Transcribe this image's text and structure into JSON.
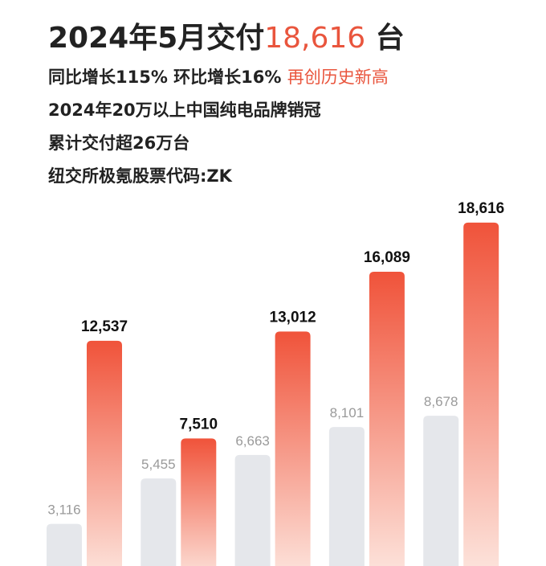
{
  "header": {
    "title": [
      "2024年5月交付",
      "18,616",
      " 台"
    ],
    "lines": [
      [
        "同比增长115% 环比增长16% ",
        "再创历史新高"
      ],
      [
        "2024年20万以上中国纯电品牌销冠"
      ],
      [
        "累计交付超26万台"
      ],
      [
        "纽交所极氪股票代码:ZK"
      ]
    ]
  },
  "chart_data": {
    "type": "bar",
    "categories": [
      null,
      null,
      null,
      null,
      null
    ],
    "series": [
      {
        "color": "#e5e7eb",
        "values": [
          3116,
          5455,
          6663,
          8101,
          8678
        ],
        "value_labels": [
          "3,116",
          "5,455",
          "6,663",
          "8,101",
          "8,678"
        ]
      },
      {
        "color": "#f0533a",
        "values": [
          12537,
          7510,
          13012,
          16089,
          18616
        ],
        "value_labels": [
          "12,537",
          "7,510",
          "13,012",
          "16,089",
          "18,616"
        ]
      }
    ]
  }
}
